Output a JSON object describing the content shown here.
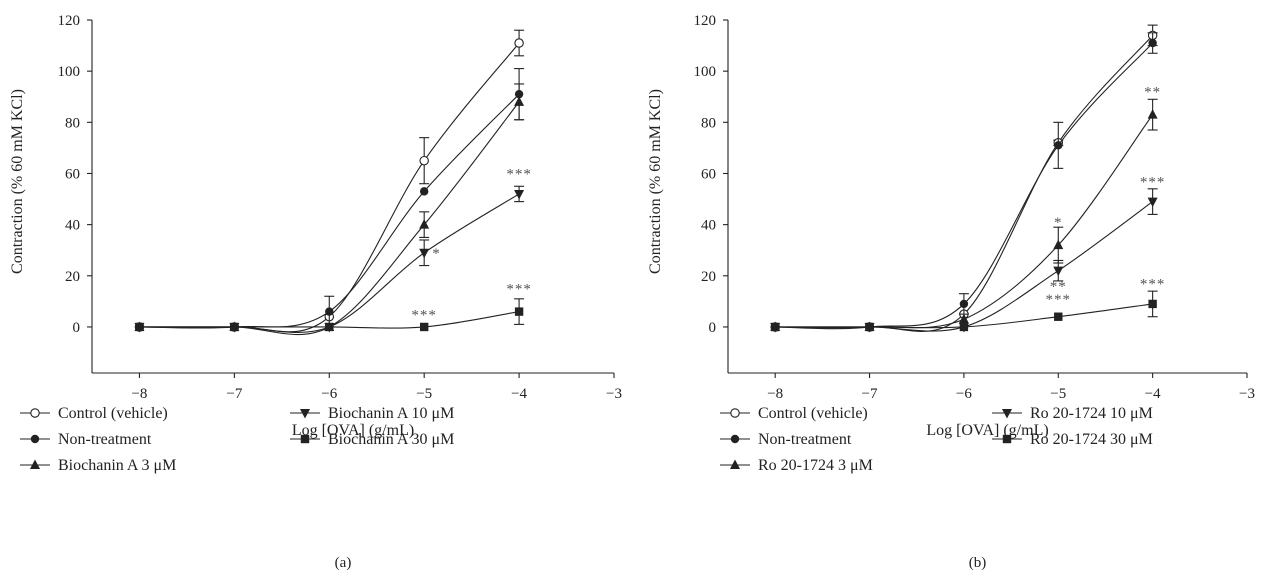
{
  "chart_data": [
    {
      "type": "line",
      "panel_label": "(a)",
      "xlabel": "Log [OVA] (g/mL)",
      "ylabel": "Contraction (% 60 mM KCl)",
      "xlim": [
        -8.5,
        -3
      ],
      "ylim": [
        -18,
        120
      ],
      "xticks": [
        -8,
        -7,
        -6,
        -5,
        -4,
        -3
      ],
      "yticks": [
        0,
        20,
        40,
        60,
        80,
        100,
        120
      ],
      "x": [
        -8,
        -7,
        -6,
        -5,
        -4
      ],
      "legend_position": "bottom",
      "series": [
        {
          "name": "Control (vehicle)",
          "marker": "open-circle",
          "values": [
            0,
            0,
            4,
            65,
            111
          ],
          "error": [
            0,
            0,
            0,
            9,
            5
          ]
        },
        {
          "name": "Non-treatment",
          "marker": "filled-circle",
          "values": [
            0,
            0,
            6,
            53,
            91
          ],
          "error": [
            0,
            0,
            6,
            0,
            10
          ]
        },
        {
          "name": "Biochanin A 3 μM",
          "marker": "triangle-up",
          "values": [
            0,
            0,
            0,
            40,
            88
          ],
          "error": [
            0,
            0,
            0,
            5,
            7
          ]
        },
        {
          "name": "Biochanin A 10 μM",
          "marker": "triangle-down",
          "values": [
            0,
            0,
            0,
            29,
            52
          ],
          "error": [
            0,
            0,
            0,
            5,
            3
          ]
        },
        {
          "name": "Biochanin A 30 μM",
          "marker": "square",
          "values": [
            0,
            0,
            0,
            0,
            6
          ],
          "error": [
            0,
            0,
            0,
            0,
            5
          ]
        }
      ],
      "annotations": [
        {
          "text": "***",
          "x": -4,
          "y": 58
        },
        {
          "text": "*",
          "x": -4.87,
          "y": 27
        },
        {
          "text": "***",
          "x": -5,
          "y": 3
        },
        {
          "text": "***",
          "x": -4,
          "y": 13
        }
      ]
    },
    {
      "type": "line",
      "panel_label": "(b)",
      "xlabel": "Log [OVA] (g/mL)",
      "ylabel": "Contraction (% 60 mM KCl)",
      "xlim": [
        -8.5,
        -3
      ],
      "ylim": [
        -18,
        120
      ],
      "xticks": [
        -8,
        -7,
        -6,
        -5,
        -4,
        -3
      ],
      "yticks": [
        0,
        20,
        40,
        60,
        80,
        100,
        120
      ],
      "x": [
        -8,
        -7,
        -6,
        -5,
        -4
      ],
      "legend_position": "bottom",
      "series": [
        {
          "name": "Control (vehicle)",
          "marker": "open-circle",
          "values": [
            0,
            0,
            5,
            72,
            114
          ],
          "error": [
            0,
            0,
            0,
            1,
            4
          ]
        },
        {
          "name": "Non-treatment",
          "marker": "filled-circle",
          "values": [
            0,
            0,
            9,
            71,
            111
          ],
          "error": [
            0,
            0,
            4,
            9,
            4
          ]
        },
        {
          "name": "Ro 20-1724 3 μM",
          "marker": "triangle-up",
          "values": [
            0,
            0,
            3,
            32,
            83
          ],
          "error": [
            0,
            0,
            0,
            7,
            6
          ]
        },
        {
          "name": "Ro 20-1724 10 μM",
          "marker": "triangle-down",
          "values": [
            0,
            0,
            0,
            22,
            49
          ],
          "error": [
            0,
            0,
            0,
            4,
            5
          ]
        },
        {
          "name": "Ro 20-1724 30 μM",
          "marker": "square",
          "values": [
            0,
            0,
            0,
            4,
            9
          ],
          "error": [
            0,
            0,
            0,
            0,
            5
          ]
        }
      ],
      "annotations": [
        {
          "text": "**",
          "x": -4,
          "y": 90
        },
        {
          "text": "***",
          "x": -4,
          "y": 55
        },
        {
          "text": "*",
          "x": -5,
          "y": 39
        },
        {
          "text": "**",
          "x": -5,
          "y": 14
        },
        {
          "text": "***",
          "x": -5,
          "y": 9
        },
        {
          "text": "***",
          "x": -4,
          "y": 15
        }
      ]
    }
  ]
}
